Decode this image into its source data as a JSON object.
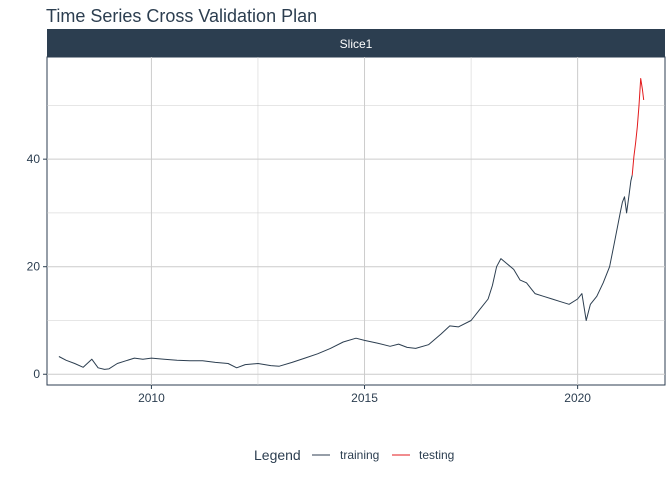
{
  "title": "Time Series Cross Validation Plan",
  "chart_data": {
    "type": "line",
    "title": "Time Series Cross Validation Plan",
    "facet_label": "Slice1",
    "xlabel": "",
    "ylabel": "",
    "xlim": [
      2007.55,
      2022.05
    ],
    "ylim": [
      -2.0,
      59.0
    ],
    "x_ticks": [
      2010,
      2015,
      2020
    ],
    "y_ticks": [
      0,
      20,
      40
    ],
    "grid": true,
    "legend": {
      "title": "Legend",
      "position": "bottom"
    },
    "colors": {
      "training": "#2c3e50",
      "testing": "#e31a1c",
      "strip": "#2c3e50",
      "grid": "#cccccc"
    },
    "series": [
      {
        "name": "training",
        "x": [
          2007.83,
          2008.0,
          2008.2,
          2008.4,
          2008.6,
          2008.75,
          2008.9,
          2009.0,
          2009.2,
          2009.4,
          2009.6,
          2009.8,
          2010.0,
          2010.3,
          2010.6,
          2010.9,
          2011.2,
          2011.5,
          2011.8,
          2012.0,
          2012.2,
          2012.5,
          2012.8,
          2013.0,
          2013.3,
          2013.6,
          2013.9,
          2014.2,
          2014.5,
          2014.8,
          2015.0,
          2015.3,
          2015.6,
          2015.8,
          2016.0,
          2016.2,
          2016.5,
          2016.8,
          2017.0,
          2017.2,
          2017.5,
          2017.7,
          2017.9,
          2018.0,
          2018.1,
          2018.2,
          2018.35,
          2018.5,
          2018.65,
          2018.8,
          2018.9,
          2019.0,
          2019.2,
          2019.4,
          2019.6,
          2019.8,
          2020.0,
          2020.1,
          2020.2,
          2020.3,
          2020.45,
          2020.6,
          2020.75,
          2020.85,
          2020.95,
          2021.0,
          2021.05,
          2021.1,
          2021.15,
          2021.2,
          2021.25,
          2021.28
        ],
        "y": [
          3.3,
          2.6,
          2.0,
          1.3,
          2.8,
          1.2,
          0.9,
          1.0,
          2.0,
          2.5,
          3.0,
          2.8,
          3.0,
          2.8,
          2.6,
          2.5,
          2.5,
          2.2,
          2.0,
          1.2,
          1.8,
          2.0,
          1.6,
          1.5,
          2.2,
          3.0,
          3.8,
          4.8,
          6.0,
          6.7,
          6.3,
          5.8,
          5.2,
          5.6,
          5.0,
          4.8,
          5.5,
          7.5,
          9.0,
          8.8,
          10.0,
          12.0,
          14.0,
          16.5,
          20.0,
          21.5,
          20.5,
          19.5,
          17.5,
          17.0,
          16.0,
          15.0,
          14.5,
          14.0,
          13.5,
          13.0,
          14.0,
          15.0,
          10.0,
          13.0,
          14.5,
          17.0,
          20.0,
          24.0,
          28.0,
          30.0,
          32.0,
          33.0,
          30.0,
          33.0,
          36.0,
          37.0
        ]
      },
      {
        "name": "testing",
        "x": [
          2021.28,
          2021.32,
          2021.36,
          2021.4,
          2021.44,
          2021.48,
          2021.52,
          2021.55
        ],
        "y": [
          37.0,
          40.5,
          43.0,
          46.0,
          50.0,
          55.0,
          53.0,
          51.0
        ]
      }
    ]
  }
}
